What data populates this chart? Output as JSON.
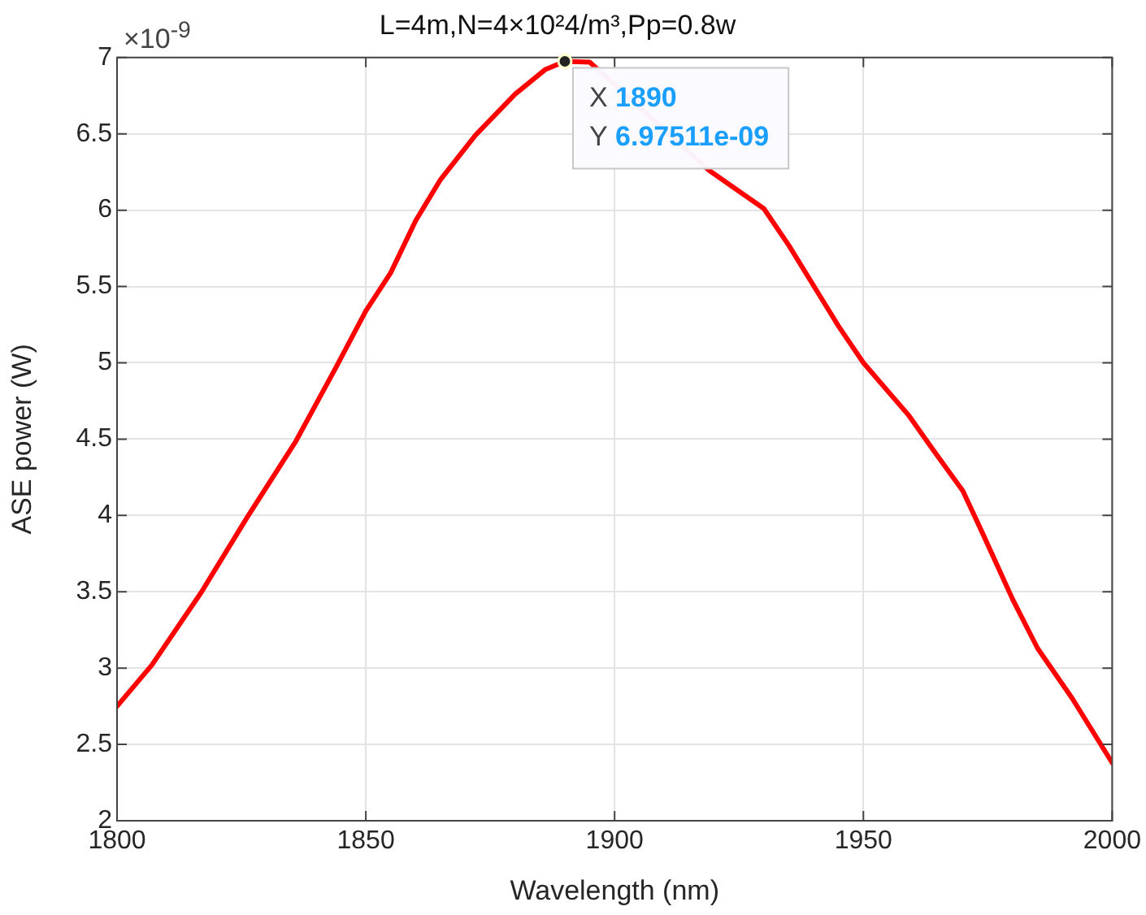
{
  "chart_data": {
    "type": "line",
    "title": "L=4m,N=4×10²4/m³,Pp=0.8w",
    "xlabel": "Wavelength (nm)",
    "ylabel": "ASE power (W)",
    "x": [
      1800,
      1807,
      1817,
      1826,
      1836,
      1844,
      1850,
      1855,
      1860,
      1865,
      1872,
      1880,
      1886,
      1890,
      1895,
      1919,
      1930,
      1935,
      1945,
      1950,
      1959,
      1964,
      1970,
      1974,
      1980,
      1985,
      1992,
      2000
    ],
    "series": [
      {
        "color": "#ff0000",
        "values": [
          2.75,
          3.02,
          3.5,
          3.98,
          4.49,
          4.97,
          5.34,
          5.59,
          5.93,
          6.2,
          6.49,
          6.76,
          6.92,
          6.975,
          6.97,
          6.26,
          6.01,
          5.77,
          5.24,
          5.0,
          4.66,
          4.43,
          4.16,
          3.88,
          3.45,
          3.13,
          2.8,
          2.38
        ]
      }
    ],
    "xlim": [
      1800,
      2000
    ],
    "xticks": [
      1800,
      1850,
      1900,
      1950,
      2000
    ],
    "ylim": [
      2,
      7
    ],
    "yticks": [
      2,
      2.5,
      3,
      3.5,
      4,
      4.5,
      5,
      5.5,
      6,
      6.5,
      7
    ],
    "grid": true,
    "legend": false,
    "marker": "none",
    "line_style": "solid",
    "annotations": [
      "×10$^{-9}$",
      {
        "text": "X 1890\nY 6.97511e-09",
        "x": 1890,
        "y": 6.975
      }
    ]
  }
}
